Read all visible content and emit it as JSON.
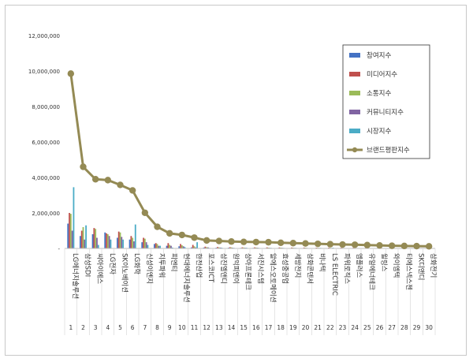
{
  "chart_data": {
    "type": "bar",
    "title": "",
    "xlabel": "",
    "ylabel": "",
    "ylim": [
      0,
      12000000
    ],
    "yticks": [
      "-",
      "2,000,000",
      "4,000,000",
      "6,000,000",
      "8,000,000",
      "10,000,000",
      "12,000,000"
    ],
    "grid": false,
    "legend_position": "right",
    "categories": [
      "LG에너지솔루션",
      "삼성SDI",
      "씨아이에스",
      "LG전자",
      "SK이노베이션",
      "LG화학",
      "신성이엔지",
      "지투파워",
      "피엔티",
      "현대에너지솔루션",
      "한전산업",
      "포스코ICT",
      "삼진엘앤디",
      "원익피앤이",
      "상아프론테크",
      "서진시스템",
      "알에스오토메이션",
      "효성중공업",
      "세방전지",
      "삼화콘덴서",
      "비나텍",
      "LS ELECTRIC",
      "파워로직스",
      "엠플러스",
      "유일에너테크",
      "윌링스",
      "와이엠텍",
      "티에스넥스젠",
      "SK디앤디",
      "삼화전기"
    ],
    "ranks": [
      "1",
      "2",
      "3",
      "4",
      "5",
      "6",
      "7",
      "8",
      "9",
      "10",
      "11",
      "12",
      "13",
      "14",
      "15",
      "16",
      "17",
      "18",
      "19",
      "20",
      "21",
      "22",
      "23",
      "24",
      "25",
      "26",
      "27",
      "28",
      "29",
      "30"
    ],
    "series": [
      {
        "name": "참여지수",
        "kind": "bar",
        "color": "#4472c4",
        "values": [
          1400000,
          700000,
          800000,
          900000,
          600000,
          500000,
          350000,
          250000,
          150000,
          120000,
          60000,
          50000,
          40000,
          40000,
          30000,
          30000,
          25000,
          25000,
          20000,
          20000,
          20000,
          20000,
          15000,
          15000,
          15000,
          15000,
          10000,
          10000,
          10000,
          10000
        ]
      },
      {
        "name": "미디어지수",
        "kind": "bar",
        "color": "#c0504d",
        "values": [
          2000000,
          1000000,
          1150000,
          850000,
          950000,
          700000,
          600000,
          300000,
          300000,
          250000,
          200000,
          100000,
          80000,
          70000,
          60000,
          60000,
          60000,
          55000,
          50000,
          50000,
          45000,
          45000,
          40000,
          40000,
          40000,
          35000,
          35000,
          30000,
          30000,
          30000
        ]
      },
      {
        "name": "소통지수",
        "kind": "bar",
        "color": "#9bbb59",
        "values": [
          1950000,
          1200000,
          1100000,
          800000,
          900000,
          600000,
          550000,
          250000,
          200000,
          180000,
          120000,
          70000,
          60000,
          60000,
          50000,
          50000,
          45000,
          45000,
          40000,
          40000,
          35000,
          35000,
          30000,
          30000,
          30000,
          30000,
          25000,
          25000,
          25000,
          25000
        ]
      },
      {
        "name": "커뮤니티지수",
        "kind": "bar",
        "color": "#8064a2",
        "values": [
          1000000,
          500000,
          600000,
          700000,
          650000,
          400000,
          350000,
          150000,
          150000,
          120000,
          60000,
          60000,
          50000,
          40000,
          40000,
          40000,
          35000,
          35000,
          30000,
          30000,
          30000,
          25000,
          25000,
          25000,
          20000,
          20000,
          20000,
          20000,
          15000,
          15000
        ]
      },
      {
        "name": "시장지수",
        "kind": "bar",
        "color": "#4bacc6",
        "values": [
          3450000,
          1300000,
          200000,
          500000,
          500000,
          1350000,
          200000,
          150000,
          50000,
          80000,
          350000,
          30000,
          40000,
          30000,
          40000,
          30000,
          30000,
          30000,
          30000,
          20000,
          30000,
          40000,
          20000,
          20000,
          20000,
          20000,
          10000,
          20000,
          20000,
          20000
        ]
      },
      {
        "name": "브랜드평판지수",
        "kind": "line",
        "color": "#948a54",
        "values": [
          9850000,
          4600000,
          3900000,
          3850000,
          3580000,
          3270000,
          2010000,
          1220000,
          850000,
          760000,
          610000,
          450000,
          420000,
          390000,
          370000,
          360000,
          350000,
          320000,
          300000,
          280000,
          260000,
          240000,
          220000,
          210000,
          190000,
          170000,
          150000,
          140000,
          130000,
          120000
        ]
      }
    ]
  }
}
